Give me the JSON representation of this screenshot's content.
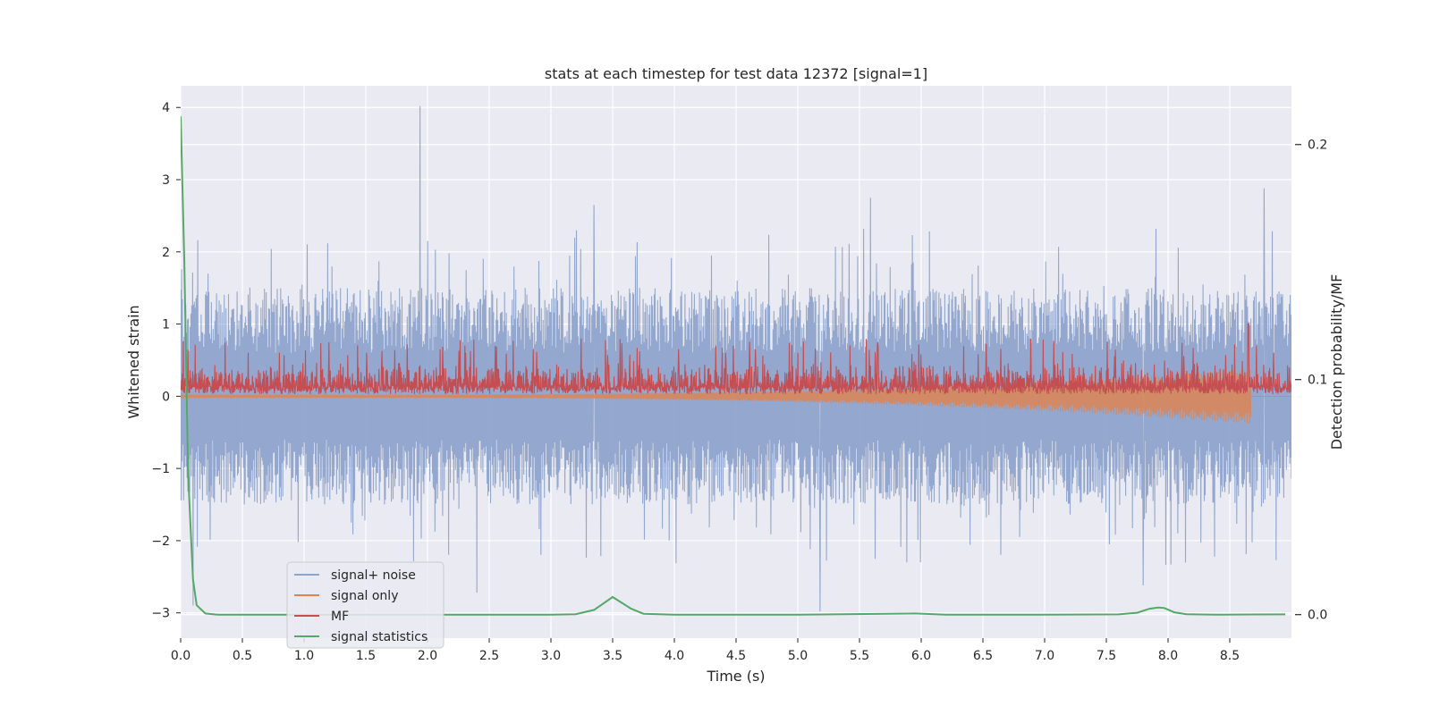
{
  "chart_data": {
    "type": "line",
    "title": "stats at each timestep for test data 12372 [signal=1]",
    "xlabel": "Time (s)",
    "ylabel": "Whitened strain",
    "y2label": "Detection probability/MF",
    "xlim": [
      0.0,
      9.0
    ],
    "ylim": [
      -3.35,
      4.3
    ],
    "y2lim": [
      -0.01,
      0.225
    ],
    "xticks": [
      0.0,
      0.5,
      1.0,
      1.5,
      2.0,
      2.5,
      3.0,
      3.5,
      4.0,
      4.5,
      5.0,
      5.5,
      6.0,
      6.5,
      7.0,
      7.5,
      8.0,
      8.5
    ],
    "xtick_labels": [
      "0.0",
      "0.5",
      "1.0",
      "1.5",
      "2.0",
      "2.5",
      "3.0",
      "3.5",
      "4.0",
      "4.5",
      "5.0",
      "5.5",
      "6.0",
      "6.5",
      "7.0",
      "7.5",
      "8.0",
      "8.5"
    ],
    "yticks": [
      -3,
      -2,
      -1,
      0,
      1,
      2,
      3,
      4
    ],
    "ytick_labels": [
      "−3",
      "−2",
      "−1",
      "0",
      "1",
      "2",
      "3",
      "4"
    ],
    "y2ticks": [
      0.0,
      0.1,
      0.2
    ],
    "y2tick_labels": [
      "0.0",
      "0.1",
      "0.2"
    ],
    "grid": true,
    "legend_position": "lower-left",
    "series": [
      {
        "name": "signal+ noise",
        "color": "#8fa4cc",
        "kind": "noise-band",
        "axis": "left",
        "envelope_low": -1.5,
        "envelope_high": 1.5,
        "spikes": [
          {
            "x": 1.94,
            "y": 4.02
          },
          {
            "x": 8.78,
            "y": 2.88
          },
          {
            "x": 3.35,
            "y": 2.65
          },
          {
            "x": 5.59,
            "y": 2.75
          },
          {
            "x": 5.18,
            "y": -2.98
          },
          {
            "x": 2.4,
            "y": -2.72
          },
          {
            "x": 0.1,
            "y": -2.9
          },
          {
            "x": 7.8,
            "y": -2.62
          }
        ]
      },
      {
        "name": "signal only",
        "color": "#dd8452",
        "kind": "chirp",
        "axis": "left",
        "start_amplitude": 0.02,
        "end_amplitude": 0.38,
        "end_time": 8.67
      },
      {
        "name": "MF",
        "color": "#c44e52",
        "kind": "mf-band",
        "axis": "left",
        "baseline": 0.08,
        "typical_high": 0.5,
        "peak": {
          "x": 8.65,
          "y": 1.0
        }
      },
      {
        "name": "signal statistics",
        "color": "#55a868",
        "kind": "line",
        "axis": "right",
        "x": [
          0.0,
          0.03,
          0.06,
          0.1,
          0.13,
          0.2,
          0.3,
          0.5,
          1.0,
          2.0,
          3.0,
          3.2,
          3.35,
          3.5,
          3.65,
          3.75,
          4.0,
          5.0,
          5.95,
          6.2,
          7.0,
          7.6,
          7.75,
          7.85,
          7.92,
          7.97,
          8.05,
          8.15,
          8.4,
          8.95
        ],
        "y": [
          0.212,
          0.15,
          0.06,
          0.015,
          0.004,
          0.0005,
          0.0,
          0.0,
          0.0,
          0.0,
          0.0,
          0.0002,
          0.002,
          0.0075,
          0.0025,
          0.0004,
          0.0,
          0.0,
          0.0005,
          0.0,
          0.0,
          0.0001,
          0.0008,
          0.0025,
          0.003,
          0.0028,
          0.001,
          0.0002,
          0.0,
          0.0001
        ]
      }
    ]
  }
}
